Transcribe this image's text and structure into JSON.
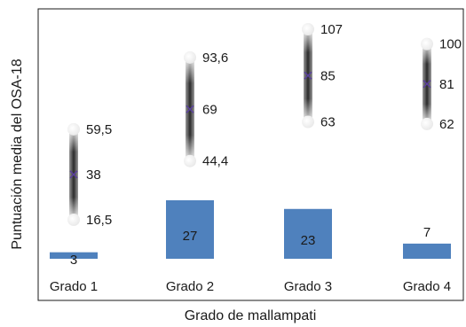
{
  "chart_data": {
    "type": "bar",
    "xlabel": "Grado de mallampati",
    "ylabel": "Puntuación media del OSA-18",
    "categories": [
      "Grado 1",
      "Grado 2",
      "Grado 3",
      "Grado 4"
    ],
    "bars": {
      "color": "#4f81bd",
      "values": [
        3,
        27,
        23,
        7
      ],
      "labels": [
        "3",
        "27",
        "23",
        "7"
      ]
    },
    "ranges": {
      "low": [
        16.5,
        44.4,
        63,
        62
      ],
      "mid": [
        38,
        69,
        85,
        81
      ],
      "high": [
        59.5,
        93.6,
        107,
        100
      ],
      "low_labels": [
        "16,5",
        "44,4",
        "63",
        "62"
      ],
      "mid_labels": [
        "38",
        "69",
        "85",
        "81"
      ],
      "high_labels": [
        "59,5",
        "93,6",
        "107",
        "100"
      ],
      "marker_color": "#5b3fa0"
    },
    "bar_ylim": [
      0,
      27
    ],
    "range_ylim": [
      16.5,
      107
    ],
    "grid": false,
    "legend": "none"
  }
}
